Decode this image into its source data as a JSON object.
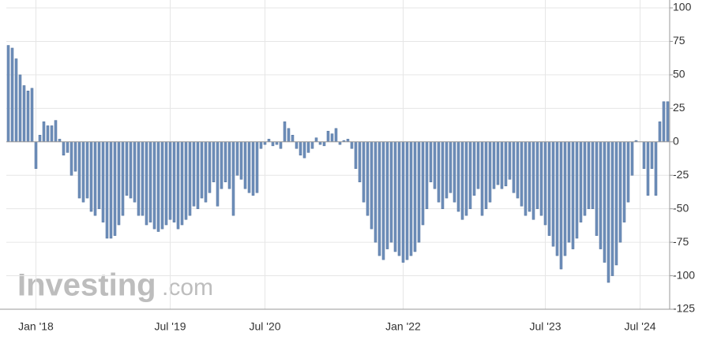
{
  "chart_data": {
    "type": "bar",
    "watermark": [
      "Investing",
      ".com"
    ],
    "categories": [
      null,
      null,
      null,
      null,
      null,
      null,
      null,
      "Jan '18",
      null,
      null,
      null,
      null,
      null,
      null,
      null,
      null,
      null,
      null,
      null,
      null,
      null,
      null,
      null,
      null,
      null,
      null,
      null,
      null,
      null,
      null,
      null,
      null,
      null,
      null,
      null,
      null,
      null,
      null,
      null,
      null,
      null,
      "Jul '19",
      null,
      null,
      null,
      null,
      null,
      null,
      null,
      null,
      null,
      null,
      null,
      null,
      null,
      null,
      null,
      null,
      null,
      null,
      null,
      null,
      null,
      null,
      null,
      "Jul '20",
      null,
      null,
      null,
      null,
      null,
      null,
      null,
      null,
      null,
      null,
      null,
      null,
      null,
      null,
      null,
      null,
      null,
      null,
      null,
      null,
      null,
      null,
      null,
      null,
      null,
      null,
      null,
      null,
      null,
      null,
      null,
      null,
      null,
      null,
      "Jan '22",
      null,
      null,
      null,
      null,
      null,
      null,
      null,
      null,
      null,
      null,
      null,
      null,
      null,
      null,
      null,
      null,
      null,
      null,
      null,
      null,
      null,
      null,
      null,
      null,
      null,
      null,
      null,
      null,
      null,
      null,
      null,
      null,
      null,
      null,
      null,
      "Jul '23",
      null,
      null,
      null,
      null,
      null,
      null,
      null,
      null,
      null,
      null,
      null,
      null,
      null,
      null,
      null,
      null,
      null,
      null,
      null,
      null,
      null,
      null,
      null,
      "Jul '24",
      null,
      null,
      null,
      null,
      null,
      null,
      null
    ],
    "values": [
      72,
      70,
      62,
      50,
      42,
      38,
      40,
      -20,
      5,
      15,
      12,
      12,
      16,
      2,
      -10,
      -8,
      -25,
      -22,
      -42,
      -45,
      -42,
      -52,
      -55,
      -50,
      -60,
      -72,
      -72,
      -70,
      -62,
      -55,
      -40,
      -42,
      -45,
      -55,
      -55,
      -62,
      -60,
      -65,
      -67,
      -65,
      -62,
      -58,
      -60,
      -65,
      -62,
      -58,
      -55,
      -48,
      -50,
      -42,
      -45,
      -38,
      -30,
      -48,
      -35,
      -30,
      -35,
      -55,
      -25,
      -28,
      -35,
      -38,
      -40,
      -38,
      -5,
      -2,
      2,
      -3,
      -2,
      -5,
      15,
      10,
      5,
      -5,
      -10,
      -12,
      -8,
      -5,
      3,
      -2,
      -3,
      8,
      6,
      10,
      -2,
      1,
      2,
      -5,
      -20,
      -30,
      -45,
      -55,
      -65,
      -75,
      -85,
      -88,
      -80,
      -75,
      -82,
      -85,
      -90,
      -88,
      -85,
      -82,
      -75,
      -62,
      -50,
      -30,
      -35,
      -45,
      -50,
      -42,
      -38,
      -45,
      -52,
      -58,
      -55,
      -50,
      -40,
      -35,
      -55,
      -50,
      -45,
      -35,
      -32,
      -35,
      -33,
      -28,
      -38,
      -42,
      -48,
      -55,
      -52,
      -58,
      -50,
      -55,
      -62,
      -70,
      -78,
      -85,
      -95,
      -85,
      -75,
      -80,
      -72,
      -60,
      -55,
      -50,
      -50,
      -70,
      -80,
      -90,
      -105,
      -100,
      -92,
      -75,
      -60,
      -45,
      -25,
      1,
      0,
      -20,
      -40,
      -20,
      -40,
      15,
      30,
      30
    ],
    "color": "#6f8fba",
    "ylim": [
      -125,
      100
    ],
    "yticks": [
      100,
      75,
      50,
      25,
      0,
      -25,
      -50,
      -75,
      -100,
      -125
    ],
    "grid": true
  }
}
